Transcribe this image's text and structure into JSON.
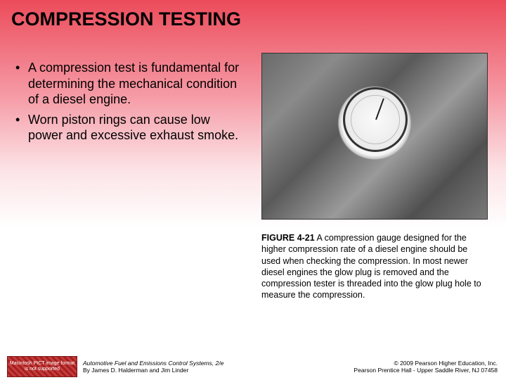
{
  "title": "COMPRESSION TESTING",
  "bullets": [
    "A compression test is fundamental for determining the mechanical condition of a diesel engine.",
    "Worn piston rings can cause low power and excessive exhaust smoke."
  ],
  "figure": {
    "label": "FIGURE 4-21",
    "caption": "A compression gauge designed for the higher compression rate of a diesel engine should be used when checking the compression. In most newer diesel engines the glow plug is removed and the compression tester is threaded into the glow plug hole to measure the compression."
  },
  "footer": {
    "badge_text": "Macintosh PICT image format is not supported",
    "left_line1": "Automotive Fuel and Emissions Control Systems, 2/e",
    "left_line2": "By James D. Halderman and Jim Linder",
    "right_line1": "© 2009 Pearson Higher Education, Inc.",
    "right_line2": "Pearson Prentice Hall - Upper Saddle River, NJ 07458"
  },
  "colors": {
    "gradient_top": "#ec4b5a",
    "gradient_mid": "#fce4e7",
    "gradient_bottom": "#ffffff",
    "text": "#000000",
    "badge_bg": "#c83a3a"
  },
  "typography": {
    "title_fontsize": 27,
    "title_weight": "bold",
    "bullet_fontsize": 18,
    "caption_fontsize": 12.5,
    "footer_fontsize": 8.5
  }
}
